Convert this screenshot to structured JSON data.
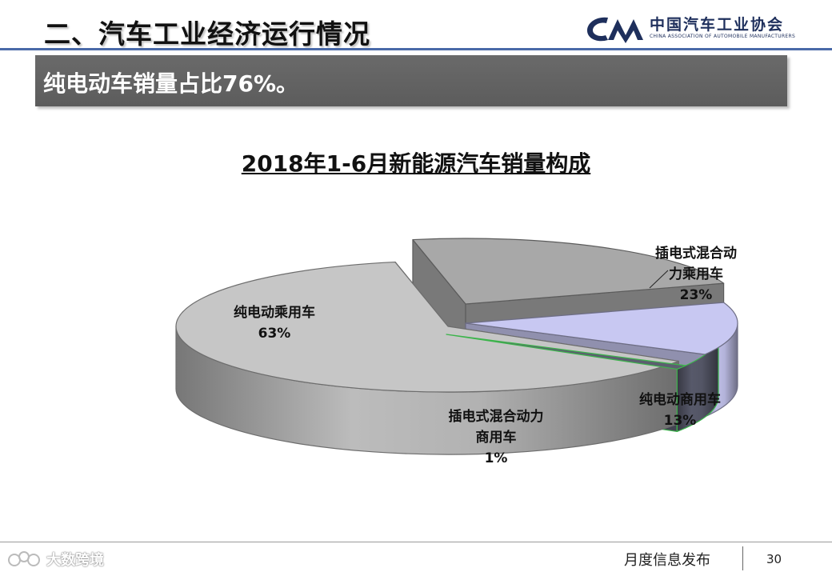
{
  "page": {
    "title": "二、汽车工业经济运行情况",
    "banner": "纯电动车销量占比76%。",
    "footer_title": "月度信息发布",
    "page_number": "30"
  },
  "logo": {
    "name": "中国汽车工业协会",
    "subtitle": "CHINA ASSOCIATION OF AUTOMOBILE MANUFACTURERS",
    "color": "#1e2f5c"
  },
  "watermark": {
    "text": "大数跨境"
  },
  "chart_data": {
    "type": "pie",
    "title": "2018年1-6月新能源汽车销量构成",
    "three_d": true,
    "slices": [
      {
        "name": "纯电动乘用车",
        "value": 63,
        "label": "63%",
        "color": "#c6c6c6",
        "exploded": false
      },
      {
        "name": "插电式混合动力乘用车",
        "label_lines": [
          "插电式混合动",
          "力乘用车"
        ],
        "value": 23,
        "label": "23%",
        "color": "#a8a8a8",
        "exploded": true
      },
      {
        "name": "纯电动商用车",
        "value": 13,
        "label": "13%",
        "color": "#c8c8f2",
        "exploded": true
      },
      {
        "name": "插电式混合动力商用车",
        "label_lines": [
          "插电式混合动力",
          "商用车"
        ],
        "value": 1,
        "label": "1%",
        "color": "#5c5e70",
        "exploded": true
      }
    ],
    "legend": "none"
  }
}
